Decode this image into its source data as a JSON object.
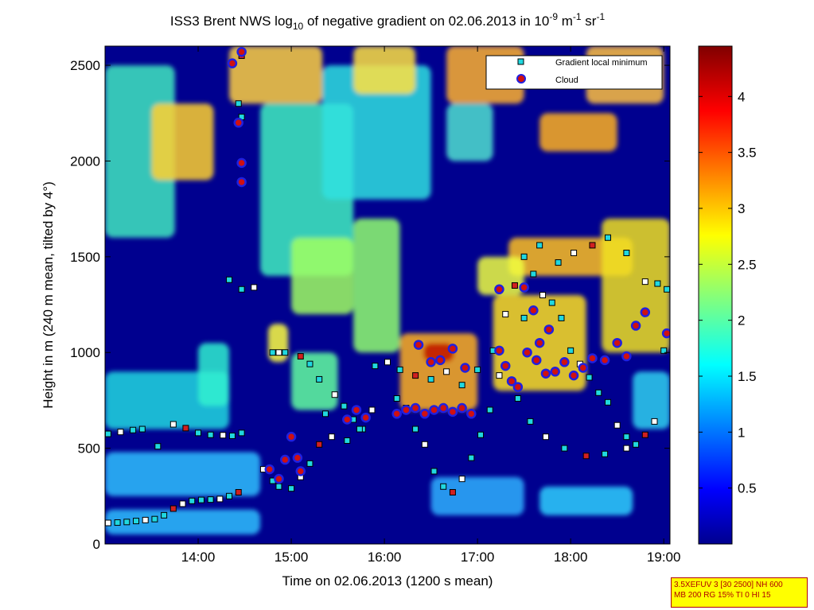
{
  "chart_data": {
    "type": "heatmap",
    "title_parts": {
      "a": "ISS3 Brent NWS log",
      "sub1": "10",
      "b": " of negative gradient on 02.06.2013 in 10",
      "sup1": "-9",
      "c": " m",
      "sup2": "-1",
      "d": " sr",
      "sup3": "-1"
    },
    "xlabel": "Time on 02.06.2013 (1200 s mean)",
    "ylabel": "Height in m (240 m mean, tilted by 4°)",
    "xlim": [
      "13:00",
      "19:04"
    ],
    "ylim": [
      0,
      2600
    ],
    "x_ticks": [
      "14:00",
      "15:00",
      "16:00",
      "17:00",
      "18:00",
      "19:00"
    ],
    "y_ticks": [
      "0",
      "500",
      "1000",
      "1500",
      "2000",
      "2500"
    ],
    "colorbar": {
      "range": [
        0,
        4.45
      ],
      "ticks": [
        "0.5",
        "1",
        "1.5",
        "2",
        "2.5",
        "3",
        "3.5",
        "4"
      ],
      "colormap": "jet"
    },
    "legend": {
      "placement": "top-right",
      "entries": [
        {
          "label": "Gradient local minimum",
          "marker": "square",
          "color": "#00e0e0"
        },
        {
          "label": "Cloud",
          "marker": "circle",
          "color": "#d01010"
        }
      ]
    },
    "series": [
      {
        "name": "Gradient local minimum",
        "points": [
          [
            "13:02",
            110
          ],
          [
            "13:08",
            112
          ],
          [
            "13:14",
            115
          ],
          [
            "13:20",
            120
          ],
          [
            "13:26",
            125
          ],
          [
            "13:32",
            130
          ],
          [
            "13:38",
            150
          ],
          [
            "13:44",
            185
          ],
          [
            "13:50",
            210
          ],
          [
            "13:56",
            225
          ],
          [
            "14:02",
            230
          ],
          [
            "14:08",
            232
          ],
          [
            "14:14",
            235
          ],
          [
            "14:20",
            250
          ],
          [
            "14:26",
            270
          ],
          [
            "13:02",
            575
          ],
          [
            "13:10",
            585
          ],
          [
            "13:18",
            595
          ],
          [
            "13:24",
            600
          ],
          [
            "13:34",
            510
          ],
          [
            "13:44",
            625
          ],
          [
            "13:52",
            605
          ],
          [
            "14:00",
            580
          ],
          [
            "14:08",
            570
          ],
          [
            "14:16",
            568
          ],
          [
            "14:22",
            565
          ],
          [
            "14:28",
            580
          ],
          [
            "14:48",
            1000
          ],
          [
            "14:52",
            1000
          ],
          [
            "14:56",
            1000
          ],
          [
            "14:20",
            1380
          ],
          [
            "14:28",
            1330
          ],
          [
            "14:36",
            1340
          ],
          [
            "14:28",
            2230
          ],
          [
            "14:26",
            2300
          ],
          [
            "14:28",
            2550
          ],
          [
            "14:42",
            390
          ],
          [
            "14:48",
            330
          ],
          [
            "14:52",
            300
          ],
          [
            "15:00",
            290
          ],
          [
            "15:06",
            350
          ],
          [
            "15:12",
            420
          ],
          [
            "15:18",
            520
          ],
          [
            "15:22",
            680
          ],
          [
            "15:28",
            780
          ],
          [
            "15:34",
            720
          ],
          [
            "15:40",
            650
          ],
          [
            "15:46",
            600
          ],
          [
            "15:52",
            700
          ],
          [
            "15:06",
            980
          ],
          [
            "15:12",
            940
          ],
          [
            "15:18",
            860
          ],
          [
            "15:26",
            560
          ],
          [
            "15:36",
            540
          ],
          [
            "15:44",
            600
          ],
          [
            "15:54",
            930
          ],
          [
            "16:02",
            950
          ],
          [
            "16:08",
            760
          ],
          [
            "16:14",
            710
          ],
          [
            "16:20",
            600
          ],
          [
            "16:26",
            520
          ],
          [
            "16:32",
            380
          ],
          [
            "16:38",
            300
          ],
          [
            "16:44",
            270
          ],
          [
            "16:50",
            340
          ],
          [
            "16:56",
            450
          ],
          [
            "17:02",
            570
          ],
          [
            "17:08",
            700
          ],
          [
            "17:14",
            880
          ],
          [
            "16:10",
            910
          ],
          [
            "16:20",
            880
          ],
          [
            "16:30",
            860
          ],
          [
            "16:40",
            900
          ],
          [
            "16:50",
            830
          ],
          [
            "17:00",
            910
          ],
          [
            "17:10",
            1010
          ],
          [
            "17:18",
            1200
          ],
          [
            "17:24",
            1350
          ],
          [
            "17:30",
            1180
          ],
          [
            "17:36",
            1410
          ],
          [
            "17:42",
            1300
          ],
          [
            "17:48",
            1260
          ],
          [
            "17:54",
            1180
          ],
          [
            "18:00",
            1010
          ],
          [
            "18:06",
            940
          ],
          [
            "18:12",
            870
          ],
          [
            "18:18",
            790
          ],
          [
            "18:24",
            740
          ],
          [
            "18:30",
            620
          ],
          [
            "18:36",
            560
          ],
          [
            "18:42",
            520
          ],
          [
            "18:48",
            570
          ],
          [
            "18:54",
            640
          ],
          [
            "19:00",
            1010
          ],
          [
            "17:26",
            760
          ],
          [
            "17:34",
            640
          ],
          [
            "17:44",
            560
          ],
          [
            "17:56",
            500
          ],
          [
            "18:10",
            460
          ],
          [
            "18:22",
            470
          ],
          [
            "18:36",
            500
          ],
          [
            "17:30",
            1500
          ],
          [
            "17:40",
            1560
          ],
          [
            "17:52",
            1470
          ],
          [
            "18:02",
            1520
          ],
          [
            "18:14",
            1560
          ],
          [
            "18:24",
            1600
          ],
          [
            "18:36",
            1520
          ],
          [
            "18:48",
            1370
          ],
          [
            "18:56",
            1360
          ],
          [
            "19:02",
            1330
          ]
        ]
      },
      {
        "name": "Cloud",
        "points": [
          [
            "14:22",
            2510
          ],
          [
            "14:28",
            2570
          ],
          [
            "14:26",
            2200
          ],
          [
            "14:28",
            1990
          ],
          [
            "14:28",
            1890
          ],
          [
            "14:46",
            390
          ],
          [
            "14:52",
            340
          ],
          [
            "14:56",
            440
          ],
          [
            "15:00",
            560
          ],
          [
            "15:04",
            450
          ],
          [
            "15:06",
            380
          ],
          [
            "15:36",
            650
          ],
          [
            "15:42",
            700
          ],
          [
            "15:48",
            660
          ],
          [
            "16:08",
            680
          ],
          [
            "16:14",
            700
          ],
          [
            "16:20",
            710
          ],
          [
            "16:26",
            680
          ],
          [
            "16:32",
            700
          ],
          [
            "16:38",
            710
          ],
          [
            "16:44",
            690
          ],
          [
            "16:50",
            710
          ],
          [
            "16:56",
            680
          ],
          [
            "16:22",
            1040
          ],
          [
            "16:30",
            950
          ],
          [
            "16:36",
            960
          ],
          [
            "16:44",
            1020
          ],
          [
            "16:52",
            920
          ],
          [
            "17:14",
            1010
          ],
          [
            "17:18",
            930
          ],
          [
            "17:22",
            850
          ],
          [
            "17:26",
            820
          ],
          [
            "17:32",
            1000
          ],
          [
            "17:38",
            960
          ],
          [
            "17:44",
            890
          ],
          [
            "17:50",
            900
          ],
          [
            "17:56",
            950
          ],
          [
            "18:02",
            880
          ],
          [
            "18:08",
            920
          ],
          [
            "18:14",
            970
          ],
          [
            "17:40",
            1050
          ],
          [
            "17:46",
            1120
          ],
          [
            "17:36",
            1220
          ],
          [
            "17:30",
            1340
          ],
          [
            "17:14",
            1330
          ],
          [
            "18:22",
            960
          ],
          [
            "18:30",
            1050
          ],
          [
            "18:36",
            980
          ],
          [
            "18:42",
            1140
          ],
          [
            "18:48",
            1210
          ],
          [
            "19:02",
            1100
          ]
        ]
      }
    ]
  },
  "annotation_box": {
    "line1": "3.5XEFUV 3 [30 2500] NH 600",
    "line2": "MB 200 RG 15% TI 0 HI 15"
  }
}
